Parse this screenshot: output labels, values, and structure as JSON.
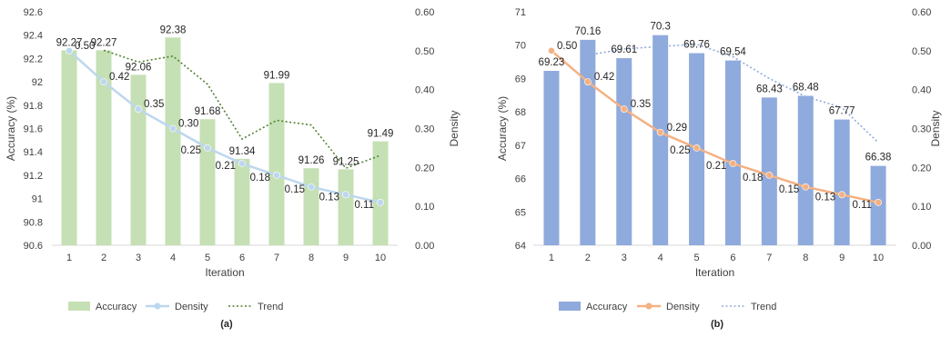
{
  "chart_data": [
    {
      "type": "bar",
      "panel_label": "(a)",
      "categories": [
        "1",
        "2",
        "3",
        "4",
        "5",
        "6",
        "7",
        "8",
        "9",
        "10"
      ],
      "xlabel": "Iteration",
      "ylabel": "Accuracy (%)",
      "y2label": "Density",
      "ylim": [
        90.6,
        92.6
      ],
      "yticks": [
        "90.6",
        "90.8",
        "91",
        "91.2",
        "91.4",
        "91.6",
        "91.8",
        "92",
        "92.2",
        "92.4",
        "92.6"
      ],
      "y2lim": [
        0,
        0.6
      ],
      "y2ticks": [
        "0.00",
        "0.10",
        "0.20",
        "0.30",
        "0.40",
        "0.50",
        "0.60"
      ],
      "grid": false,
      "legend_position": "bottom",
      "series": [
        {
          "name": "Accuracy",
          "kind": "bar",
          "axis": "left",
          "color": "#c5e0b4",
          "values": [
            92.27,
            92.27,
            92.06,
            92.38,
            91.68,
            91.34,
            91.99,
            91.26,
            91.25,
            91.49
          ],
          "labels": [
            "92.27",
            "92.27",
            "92.06",
            "92.38",
            "91.68",
            "91.34",
            "91.99",
            "91.26",
            "91.25",
            "91.49"
          ]
        },
        {
          "name": "Density",
          "kind": "line",
          "axis": "right",
          "color": "#bdd7ee",
          "values": [
            0.5,
            0.42,
            0.35,
            0.3,
            0.25,
            0.21,
            0.18,
            0.15,
            0.13,
            0.11
          ],
          "labels": [
            "0.50",
            "0.42",
            "0.35",
            "0.30",
            "0.25",
            "0.21",
            "0.18",
            "0.15",
            "0.13",
            "0.11"
          ]
        },
        {
          "name": "Trend",
          "kind": "line-dotted",
          "axis": "left",
          "color": "#548235",
          "x": [
            2,
            3,
            4,
            5,
            6,
            7,
            8,
            9,
            10
          ],
          "values": [
            92.27,
            92.17,
            92.22,
            91.98,
            91.51,
            91.67,
            91.63,
            91.26,
            91.37
          ]
        }
      ]
    },
    {
      "type": "bar",
      "panel_label": "(b)",
      "categories": [
        "1",
        "2",
        "3",
        "4",
        "5",
        "6",
        "7",
        "8",
        "9",
        "10"
      ],
      "xlabel": "Iteration",
      "ylabel": "Accuracy (%)",
      "y2label": "Density",
      "ylim": [
        64,
        71
      ],
      "yticks": [
        "64",
        "65",
        "66",
        "67",
        "68",
        "69",
        "70",
        "71"
      ],
      "y2lim": [
        0,
        0.6
      ],
      "y2ticks": [
        "0.00",
        "0.10",
        "0.20",
        "0.30",
        "0.40",
        "0.50",
        "0.60"
      ],
      "grid": false,
      "legend_position": "bottom",
      "series": [
        {
          "name": "Accuracy",
          "kind": "bar",
          "axis": "left",
          "color": "#8faadc",
          "values": [
            69.23,
            70.16,
            69.61,
            70.3,
            69.76,
            69.54,
            68.43,
            68.48,
            67.77,
            66.38
          ],
          "labels": [
            "69.23",
            "70.16",
            "69.61",
            "70.3",
            "69.76",
            "69.54",
            "68.43",
            "68.48",
            "67.77",
            "66.38"
          ]
        },
        {
          "name": "Density",
          "kind": "line",
          "axis": "right",
          "color": "#f4b183",
          "values": [
            0.5,
            0.42,
            0.35,
            0.29,
            0.25,
            0.21,
            0.18,
            0.15,
            0.13,
            0.11
          ],
          "labels": [
            "0.50",
            "0.42",
            "0.35",
            "0.29",
            "0.25",
            "0.21",
            "0.18",
            "0.15",
            "0.13",
            "0.11"
          ]
        },
        {
          "name": "Trend",
          "kind": "line-dotted",
          "axis": "left",
          "color": "#8faadc",
          "x": [
            2,
            3,
            4,
            5,
            6,
            7,
            8,
            9,
            10
          ],
          "values": [
            69.7,
            69.89,
            69.96,
            70.03,
            69.65,
            69.0,
            68.46,
            68.13,
            67.08
          ]
        }
      ]
    }
  ]
}
